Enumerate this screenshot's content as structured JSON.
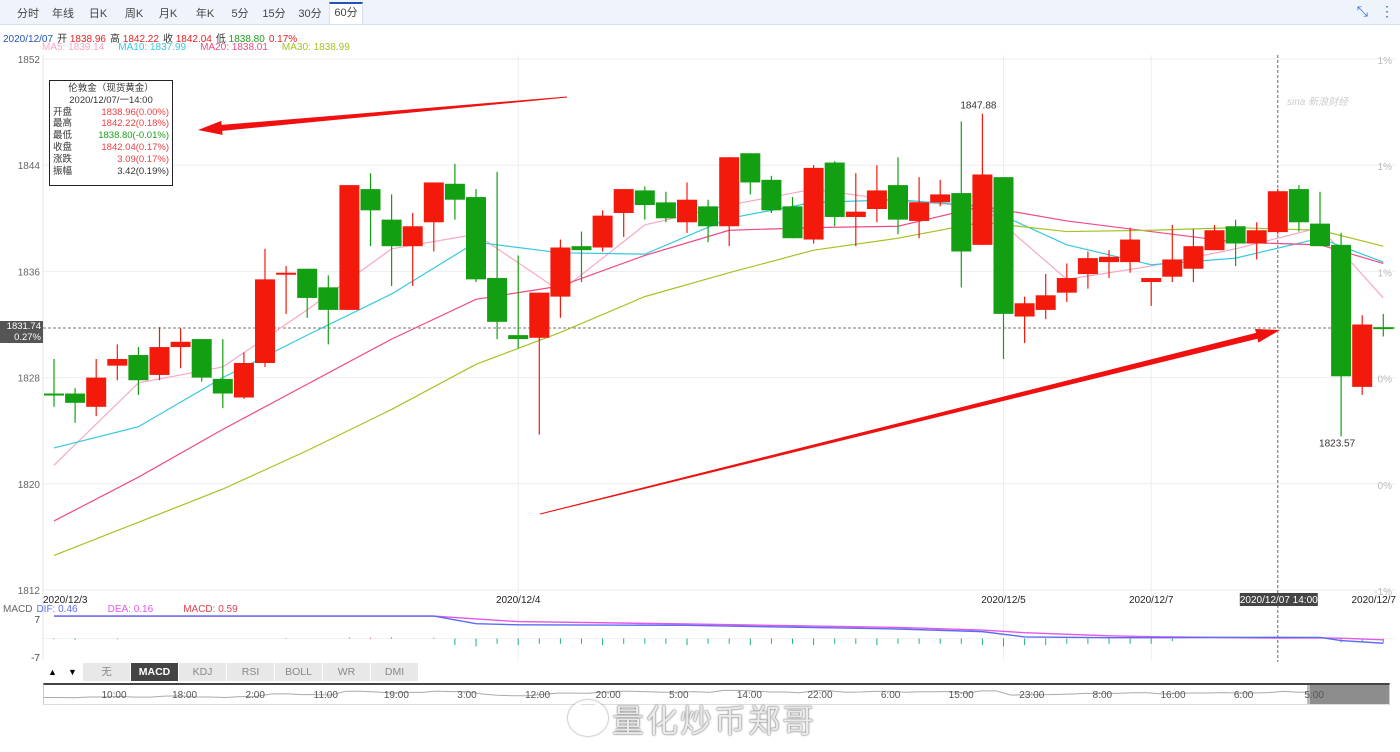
{
  "tabs": [
    {
      "label": "分时"
    },
    {
      "label": "年线"
    },
    {
      "label": "日K"
    },
    {
      "label": "周K"
    },
    {
      "label": "月K"
    },
    {
      "label": "年K"
    },
    {
      "label": "5分"
    },
    {
      "label": "15分"
    },
    {
      "label": "30分"
    },
    {
      "label": "60分",
      "active": true
    }
  ],
  "toolbar_icons": [
    "compress-icon",
    "more-vertical-icon"
  ],
  "info": {
    "date": "2020/12/07",
    "open_label": "开",
    "open": "1838.96",
    "high_label": "高",
    "high": "1842.22",
    "close_label": "收",
    "close": "1842.04",
    "low_label": "低",
    "low": "1838.80",
    "change": "0.17%",
    "ma5": "MA5: 1839.14",
    "ma10": "MA10: 1837.99",
    "ma20": "MA20: 1838.01",
    "ma30": "MA30: 1838.99"
  },
  "tooltip": {
    "title": "伦敦金（现货黄金）",
    "time": "2020/12/07/一14:00",
    "rows": [
      {
        "label": "开盘",
        "value": "1838.96(0.00%)",
        "color": "#f04040"
      },
      {
        "label": "最高",
        "value": "1842.22(0.18%)",
        "color": "#f04040"
      },
      {
        "label": "最低",
        "value": "1838.80(-0.01%)",
        "color": "#1aa01a"
      },
      {
        "label": "收盘",
        "value": "1842.04(0.17%)",
        "color": "#f04040"
      },
      {
        "label": "涨跌",
        "value": "3.09(0.17%)",
        "color": "#f04040"
      },
      {
        "label": "振幅",
        "value": "3.42(0.19%)",
        "color": "#333"
      }
    ]
  },
  "current_price": {
    "price": "1831.74",
    "pct": "0.27%"
  },
  "watermark_sina": "sina 新浪财经",
  "watermark": "量化炒币郑哥",
  "colors": {
    "up": "#f31a0c",
    "down": "#12a012",
    "ma5": "#f7a8c4",
    "ma10": "#35c9e0",
    "ma20": "#ef4a86",
    "ma30": "#a3c424",
    "dif": "#5a6cf0",
    "dea": "#e457e8",
    "macd": "#e04050"
  },
  "chart_data": {
    "type": "candlestick",
    "y_ticks": [
      1852,
      1844,
      1836,
      1828,
      1820,
      1812
    ],
    "ylim": [
      1812,
      1852
    ],
    "right_ticks": [
      "1%",
      "1%",
      "1%",
      "0%",
      "0%",
      "-1%"
    ],
    "grid": true,
    "x_labels": [
      {
        "label": "2020/12/3",
        "candle_index": 0
      },
      {
        "label": "2020/12/4",
        "candle_index": 22
      },
      {
        "label": "2020/12/5",
        "candle_index": 45
      },
      {
        "label": "2020/12/7",
        "candle_index": 52
      },
      {
        "label": "2020/12/7",
        "candle_index": 63
      }
    ],
    "crosshair": {
      "label": "2020/12/07 14:00",
      "candle_index": 58,
      "price": 1831.74
    },
    "annotations": [
      {
        "text": "1847.88",
        "candle_index": 44
      },
      {
        "text": "1823.57",
        "candle_index": 61
      }
    ],
    "candles_ohlc": [
      [
        1826.8,
        1829.4,
        1825.8,
        1826.7
      ],
      [
        1826.8,
        1827.2,
        1824.6,
        1826.1
      ],
      [
        1825.8,
        1829.4,
        1825.1,
        1828.0
      ],
      [
        1828.9,
        1830.5,
        1827.8,
        1829.4
      ],
      [
        1829.7,
        1830.3,
        1826.7,
        1827.8
      ],
      [
        1828.2,
        1831.8,
        1827.8,
        1830.3
      ],
      [
        1830.3,
        1831.7,
        1828.7,
        1830.7
      ],
      [
        1830.9,
        1830.9,
        1827.7,
        1828.0
      ],
      [
        1827.9,
        1830.9,
        1825.7,
        1826.8
      ],
      [
        1826.5,
        1829.9,
        1826.4,
        1829.1
      ],
      [
        1829.1,
        1837.7,
        1828.8,
        1835.4
      ],
      [
        1835.8,
        1836.4,
        1832.8,
        1835.9
      ],
      [
        1836.2,
        1836.2,
        1832.5,
        1834.0
      ],
      [
        1834.8,
        1835.7,
        1830.5,
        1833.1
      ],
      [
        1833.1,
        1842.5,
        1833.1,
        1842.5
      ],
      [
        1842.2,
        1843.4,
        1837.9,
        1840.6
      ],
      [
        1839.9,
        1841.8,
        1834.9,
        1837.9
      ],
      [
        1837.9,
        1840.4,
        1834.9,
        1839.4
      ],
      [
        1839.7,
        1842.7,
        1837.5,
        1842.7
      ],
      [
        1842.6,
        1844.1,
        1839.9,
        1841.4
      ],
      [
        1841.6,
        1842.2,
        1835.2,
        1835.4
      ],
      [
        1835.5,
        1843.5,
        1830.9,
        1832.2
      ],
      [
        1831.2,
        1837.2,
        1830.2,
        1830.9
      ],
      [
        1831.0,
        1834.4,
        1823.7,
        1834.4
      ],
      [
        1834.1,
        1838.4,
        1832.5,
        1837.8
      ],
      [
        1837.9,
        1839.0,
        1835.2,
        1837.6
      ],
      [
        1837.8,
        1840.6,
        1837.5,
        1840.2
      ],
      [
        1840.4,
        1842.2,
        1838.6,
        1842.2
      ],
      [
        1842.1,
        1842.4,
        1839.9,
        1841.0
      ],
      [
        1841.2,
        1842.0,
        1839.7,
        1840.0
      ],
      [
        1839.7,
        1842.7,
        1838.9,
        1841.4
      ],
      [
        1840.9,
        1841.4,
        1838.2,
        1839.4
      ],
      [
        1839.4,
        1844.6,
        1837.9,
        1844.6
      ],
      [
        1844.9,
        1844.9,
        1841.8,
        1842.7
      ],
      [
        1842.9,
        1843.2,
        1840.4,
        1840.6
      ],
      [
        1840.9,
        1841.6,
        1838.5,
        1838.5
      ],
      [
        1838.4,
        1844.0,
        1838.1,
        1843.8
      ],
      [
        1844.2,
        1844.3,
        1839.4,
        1840.1
      ],
      [
        1840.1,
        1843.4,
        1837.9,
        1840.5
      ],
      [
        1840.7,
        1844.0,
        1839.7,
        1842.1
      ],
      [
        1842.5,
        1844.6,
        1838.8,
        1839.9
      ],
      [
        1839.8,
        1843.1,
        1838.5,
        1841.2
      ],
      [
        1841.2,
        1842.9,
        1840.9,
        1841.8
      ],
      [
        1841.9,
        1847.3,
        1834.8,
        1837.5
      ],
      [
        1838.0,
        1847.88,
        1838.0,
        1843.3
      ],
      [
        1843.1,
        1843.1,
        1829.4,
        1832.8
      ],
      [
        1832.6,
        1834.1,
        1830.6,
        1833.6
      ],
      [
        1833.1,
        1835.8,
        1832.4,
        1834.2
      ],
      [
        1834.4,
        1836.6,
        1833.7,
        1835.5
      ],
      [
        1835.8,
        1837.5,
        1834.7,
        1837.0
      ],
      [
        1836.7,
        1837.6,
        1835.5,
        1837.1
      ],
      [
        1836.7,
        1839.3,
        1835.9,
        1838.4
      ],
      [
        1835.2,
        1835.5,
        1833.4,
        1835.5
      ],
      [
        1835.6,
        1839.5,
        1835.2,
        1836.9
      ],
      [
        1836.2,
        1839.2,
        1835.2,
        1837.9
      ],
      [
        1837.6,
        1839.5,
        1837.6,
        1839.1
      ],
      [
        1839.4,
        1839.9,
        1836.4,
        1838.1
      ],
      [
        1838.1,
        1839.7,
        1836.9,
        1839.1
      ],
      [
        1838.96,
        1842.22,
        1838.8,
        1842.04
      ],
      [
        1842.2,
        1842.5,
        1839.0,
        1839.7
      ],
      [
        1839.6,
        1842.0,
        1837.9,
        1837.9
      ],
      [
        1838.0,
        1838.9,
        1823.57,
        1828.1
      ],
      [
        1827.3,
        1832.7,
        1826.7,
        1832.0
      ],
      [
        1831.8,
        1832.8,
        1831.1,
        1831.74
      ]
    ],
    "ma_sample_indices": [
      0,
      4,
      8,
      12,
      16,
      20,
      24,
      28,
      32,
      36,
      40,
      44,
      48,
      52,
      56,
      60,
      63
    ],
    "series": [
      {
        "name": "MA5",
        "values": [
          1821.4,
          1827.6,
          1828.8,
          1833.1,
          1837.7,
          1838.8,
          1834.5,
          1839.5,
          1841.0,
          1842.2,
          1841.3,
          1840.9,
          1835.4,
          1836.4,
          1837.7,
          1839.3,
          1834.0
        ]
      },
      {
        "name": "MA10",
        "values": [
          1822.7,
          1824.3,
          1828.0,
          1831.2,
          1834.3,
          1838.2,
          1837.4,
          1837.3,
          1840.0,
          1841.2,
          1841.4,
          1840.9,
          1838.0,
          1836.5,
          1837.0,
          1838.5,
          1836.7
        ]
      },
      {
        "name": "MA20",
        "values": [
          1817.2,
          1820.5,
          1824.1,
          1827.5,
          1830.9,
          1833.9,
          1834.9,
          1837.2,
          1839.1,
          1839.3,
          1839.4,
          1840.9,
          1839.8,
          1839.0,
          1838.2,
          1838.0,
          1836.6
        ]
      },
      {
        "name": "MA30",
        "values": [
          1814.6,
          1817.1,
          1819.6,
          1822.5,
          1825.6,
          1829.0,
          1831.4,
          1834.1,
          1835.9,
          1837.6,
          1838.5,
          1839.7,
          1839.0,
          1839.1,
          1839.3,
          1839.1,
          1837.9
        ]
      }
    ]
  },
  "macd": {
    "label": "MACD",
    "dif_label": "DIF: 0.46",
    "dea_label": "DEA: 0.16",
    "macd_label": "MACD: 0.59",
    "y_ticks": [
      "7",
      "-7"
    ],
    "ylim": [
      -7,
      7
    ],
    "sample_indices": [
      0,
      18,
      20,
      22,
      30,
      40,
      44,
      46,
      50,
      52,
      58,
      60,
      61,
      63
    ],
    "dif": [
      8.5,
      8.5,
      5.6,
      5.2,
      5.0,
      3.6,
      2.6,
      0.6,
      0.3,
      0.3,
      0.46,
      0.4,
      -0.8,
      -1.8
    ],
    "dea": [
      8.5,
      8.5,
      7.4,
      6.4,
      5.5,
      4.2,
      3.2,
      2.2,
      1.0,
      0.7,
      0.16,
      0.2,
      0.1,
      -0.5
    ],
    "hist": [
      -0.3,
      -0.5,
      0,
      -0.3,
      0,
      0,
      0,
      0,
      0,
      0,
      0,
      -0.2,
      0,
      0,
      0.3,
      0.3,
      0.4,
      0,
      0.3,
      -2.5,
      -3,
      -2,
      -2.5,
      -2,
      -2,
      -2,
      -2.5,
      -2,
      -2,
      -2,
      -2.5,
      -2,
      -2,
      -2.5,
      -2,
      -2,
      -2.5,
      -2,
      -2,
      -2.5,
      -2,
      -2,
      -2,
      -2,
      -2.5,
      -3,
      -2.5,
      -2.5,
      -2,
      -2,
      -2,
      -2,
      -2,
      -1,
      0,
      0,
      0,
      0,
      0.59,
      0,
      0,
      -1.5,
      -1.5,
      -1.5
    ]
  },
  "indicator_tabs": [
    {
      "label": "无"
    },
    {
      "label": "MACD",
      "active": true
    },
    {
      "label": "KDJ"
    },
    {
      "label": "RSI"
    },
    {
      "label": "BOLL"
    },
    {
      "label": "WR"
    },
    {
      "label": "DMI"
    }
  ],
  "scroll_up": "▲",
  "scroll_down": "▼",
  "navigator_labels": [
    "10:00",
    "18:00",
    "2:00",
    "11:00",
    "19:00",
    "3:00",
    "12:00",
    "20:00",
    "5:00",
    "14:00",
    "22:00",
    "6:00",
    "15:00",
    "23:00",
    "8:00",
    "16:00",
    "6:00",
    "5:00"
  ]
}
